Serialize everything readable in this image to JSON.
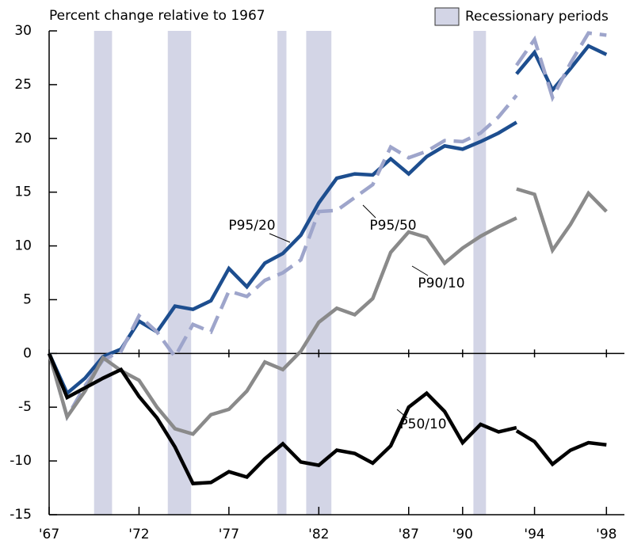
{
  "chart_data": {
    "type": "line",
    "title": "Percent change relative to 1967",
    "legend_label": "Recessionary periods",
    "recession_color": "#d3d5e6",
    "recessions": [
      [
        1969.5,
        1970.5
      ],
      [
        1973.6,
        1974.9
      ],
      [
        1979.7,
        1980.2
      ],
      [
        1981.3,
        1982.7
      ],
      [
        1990.6,
        1991.3
      ]
    ],
    "x": [
      1967,
      1968,
      1969,
      1970,
      1971,
      1972,
      1973,
      1974,
      1975,
      1976,
      1977,
      1978,
      1979,
      1980,
      1981,
      1982,
      1983,
      1984,
      1985,
      1986,
      1987,
      1988,
      1989,
      1990,
      1991,
      1992,
      1993,
      1993,
      1993,
      1994,
      1995,
      1996,
      1997,
      1998
    ],
    "xlim": [
      1967,
      1999
    ],
    "xticks": [
      {
        "value": 1967,
        "label": "'67"
      },
      {
        "value": 1972,
        "label": "'72"
      },
      {
        "value": 1977,
        "label": "'77"
      },
      {
        "value": 1982,
        "label": "'82"
      },
      {
        "value": 1987,
        "label": "'87"
      },
      {
        "value": 1990,
        "label": "'90"
      },
      {
        "value": 1994,
        "label": "'94"
      },
      {
        "value": 1998,
        "label": "'98"
      }
    ],
    "ylim": [
      -15,
      30
    ],
    "yticks": [
      -15,
      -10,
      -5,
      0,
      5,
      10,
      15,
      20,
      25,
      30
    ],
    "series": [
      {
        "name": "P95/20",
        "color": "#1d4e8f",
        "dashed": false,
        "values": [
          0,
          -3.7,
          -2.3,
          -0.3,
          0.4,
          3.0,
          2.0,
          4.4,
          4.1,
          4.9,
          7.9,
          6.2,
          8.4,
          9.3,
          11.0,
          14.0,
          16.3,
          16.7,
          16.6,
          18.1,
          16.7,
          18.3,
          19.3,
          19.0,
          19.7,
          20.5,
          21.5,
          null,
          26.0,
          28.0,
          24.5,
          26.5,
          28.6,
          27.8
        ]
      },
      {
        "name": "P95/50",
        "color": "#9ea5cb",
        "dashed": true,
        "values": [
          0,
          -5.9,
          -3.0,
          -0.6,
          0.2,
          3.5,
          2.0,
          -0.3,
          2.7,
          2.0,
          5.8,
          5.3,
          6.8,
          7.5,
          8.7,
          13.2,
          13.3,
          14.5,
          15.7,
          19.2,
          18.2,
          18.8,
          19.8,
          19.7,
          20.5,
          22.0,
          24.0,
          null,
          26.8,
          29.2,
          23.8,
          27.0,
          29.8,
          29.6
        ]
      },
      {
        "name": "P90/10",
        "color": "#8a8a8a",
        "dashed": false,
        "values": [
          0,
          -5.9,
          -3.5,
          -0.4,
          -1.6,
          -2.5,
          -5.0,
          -7.0,
          -7.5,
          -5.7,
          -5.2,
          -3.5,
          -0.8,
          -1.5,
          0.2,
          2.9,
          4.2,
          3.6,
          5.1,
          9.4,
          11.3,
          10.8,
          8.4,
          9.8,
          10.9,
          11.8,
          12.6,
          null,
          15.3,
          14.8,
          9.6,
          12.0,
          14.9,
          13.2
        ]
      },
      {
        "name": "P50/10",
        "color": "#000000",
        "dashed": false,
        "values": [
          0,
          -4.1,
          -3.2,
          -2.3,
          -1.5,
          -4.0,
          -6.0,
          -8.7,
          -12.1,
          -12.0,
          -11.0,
          -11.5,
          -9.8,
          -8.4,
          -10.1,
          -10.4,
          -9.0,
          -9.3,
          -10.2,
          -8.6,
          -5.0,
          -3.7,
          -5.4,
          -8.3,
          -6.6,
          -7.3,
          -6.9,
          null,
          -7.2,
          -8.2,
          -10.3,
          -9.0,
          -8.3,
          -8.5
        ]
      }
    ]
  }
}
